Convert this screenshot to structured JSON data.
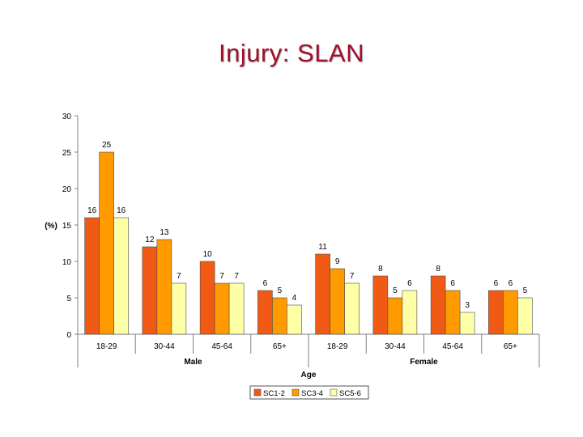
{
  "slide": {
    "title": "Injury: SLAN"
  },
  "chart_data": {
    "type": "bar",
    "ylabel": "(%)",
    "xlabel": "Age",
    "ylim": [
      0,
      30
    ],
    "yticks": [
      "0",
      "5",
      "10",
      "15",
      "20",
      "25",
      "30"
    ],
    "grid": false,
    "legend_position": "bottom",
    "categories": [
      "18-29",
      "30-44",
      "45-64",
      "65+",
      "18-29",
      "30-44",
      "45-64",
      "65+"
    ],
    "groups": [
      {
        "label": "Male",
        "categories": [
          "18-29",
          "30-44",
          "45-64",
          "65+"
        ]
      },
      {
        "label": "Female",
        "categories": [
          "18-29",
          "30-44",
          "45-64",
          "65+"
        ]
      }
    ],
    "series": [
      {
        "name": "SC1-2",
        "color": "#f05a14",
        "values": [
          16,
          12,
          10,
          6,
          11,
          8,
          8,
          6
        ]
      },
      {
        "name": "SC3-4",
        "color": "#ff9a00",
        "values": [
          25,
          13,
          7,
          5,
          9,
          5,
          6,
          6
        ]
      },
      {
        "name": "SC5-6",
        "color": "#ffffa8",
        "values": [
          16,
          7,
          7,
          4,
          7,
          6,
          3,
          5
        ]
      }
    ]
  }
}
